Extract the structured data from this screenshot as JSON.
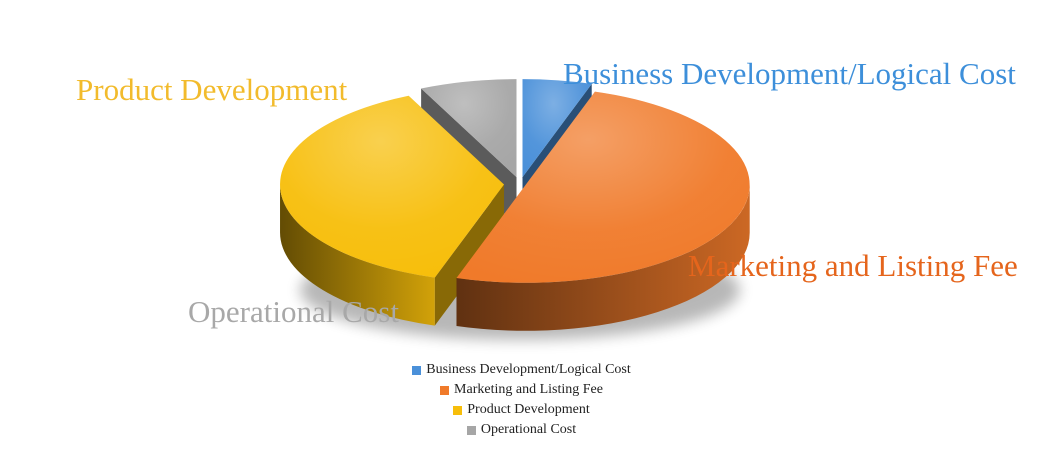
{
  "chart_data": {
    "type": "pie",
    "title": "",
    "categories": [
      "Business Development/Logical Cost",
      "Marketing and Listing Fee",
      "Product Development",
      "Operational Cost"
    ],
    "values": [
      5,
      50,
      38,
      7
    ],
    "colors": [
      "#4A90D9",
      "#F07A2A",
      "#F7BE0A",
      "#A6A6A6"
    ],
    "label_colors": [
      "#3D8FDA",
      "#E5651C",
      "#F2BB2C",
      "#A8A8A8"
    ],
    "legend_position": "bottom",
    "style": "3d-exploded"
  }
}
